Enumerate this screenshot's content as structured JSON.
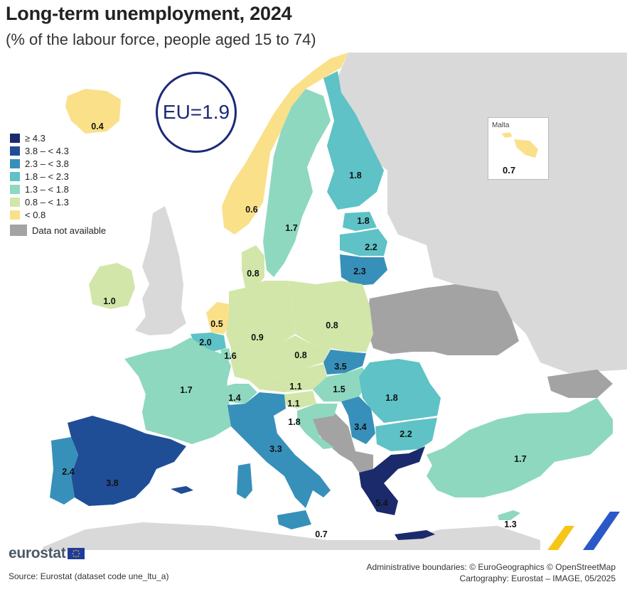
{
  "title": "Long-term unemployment, 2024",
  "subtitle": "(% of the labour force, people aged 15 to 74)",
  "eu_average": "EU=1.9",
  "legend": {
    "items": [
      {
        "label": "≥ 4.3",
        "color": "#1b2a6b"
      },
      {
        "label": "3.8 – < 4.3",
        "color": "#1f4e96"
      },
      {
        "label": "2.3 – < 3.8",
        "color": "#3790b9"
      },
      {
        "label": "1.8 – < 2.3",
        "color": "#5ec2c6"
      },
      {
        "label": "1.3 – < 1.8",
        "color": "#8ed8bf"
      },
      {
        "label": "0.8 – < 1.3",
        "color": "#d2e6a9"
      },
      {
        "label": "< 0.8",
        "color": "#fbe08a"
      }
    ],
    "not_available": {
      "label": "Data not available",
      "color": "#a3a3a3"
    }
  },
  "countries": [
    {
      "name": "Iceland",
      "value": "0.4"
    },
    {
      "name": "Norway",
      "value": "0.6"
    },
    {
      "name": "Sweden",
      "value": "1.7"
    },
    {
      "name": "Finland",
      "value": "1.8"
    },
    {
      "name": "Estonia",
      "value": "1.8"
    },
    {
      "name": "Latvia",
      "value": "2.2"
    },
    {
      "name": "Lithuania",
      "value": "2.3"
    },
    {
      "name": "Denmark",
      "value": "0.8"
    },
    {
      "name": "Ireland",
      "value": "1.0"
    },
    {
      "name": "Netherlands",
      "value": "0.5"
    },
    {
      "name": "Belgium",
      "value": "2.0"
    },
    {
      "name": "Luxembourg",
      "value": "1.6"
    },
    {
      "name": "Germany",
      "value": "0.9"
    },
    {
      "name": "Poland",
      "value": "0.8"
    },
    {
      "name": "Czechia",
      "value": "0.8"
    },
    {
      "name": "Slovakia",
      "value": "3.5"
    },
    {
      "name": "Austria",
      "value": "1.1"
    },
    {
      "name": "Hungary",
      "value": "1.5"
    },
    {
      "name": "Slovenia",
      "value": "1.1"
    },
    {
      "name": "Croatia",
      "value": "1.8"
    },
    {
      "name": "Serbia",
      "value": "3.4"
    },
    {
      "name": "Romania",
      "value": "1.8"
    },
    {
      "name": "Bulgaria",
      "value": "2.2"
    },
    {
      "name": "France",
      "value": "1.7"
    },
    {
      "name": "Switzerland",
      "value": "1.4"
    },
    {
      "name": "Italy",
      "value": "3.3"
    },
    {
      "name": "Spain",
      "value": "3.8"
    },
    {
      "name": "Portugal",
      "value": "2.4"
    },
    {
      "name": "Greece",
      "value": "5.4"
    },
    {
      "name": "Turkiye",
      "value": "1.7"
    },
    {
      "name": "Cyprus",
      "value": "1.3"
    },
    {
      "name": "Malta",
      "value": "0.7"
    }
  ],
  "malta_inset": {
    "name": "Malta",
    "value": "0.7"
  },
  "logo": "eurostat",
  "source": "Source: Eurostat (dataset code une_ltu_a)",
  "credits": [
    "Administrative boundaries: © EuroGeographics © OpenStreetMap",
    "Cartography: Eurostat – IMAGE, 05/2025"
  ]
}
